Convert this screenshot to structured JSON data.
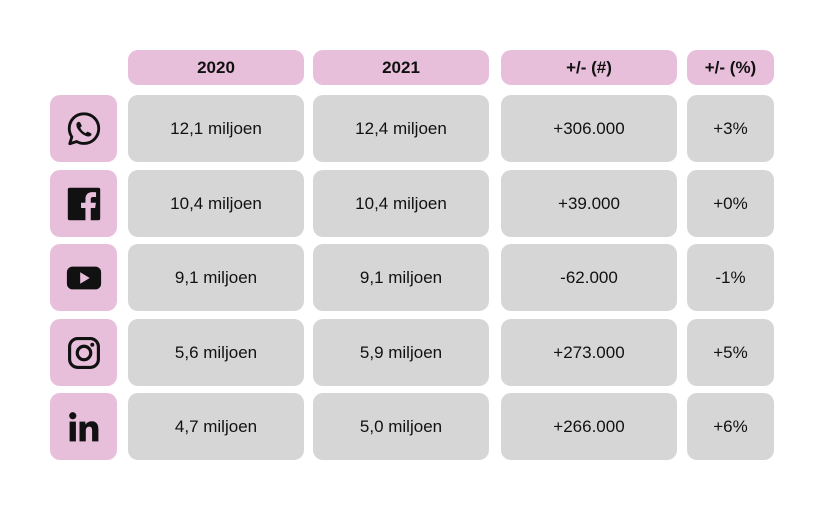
{
  "colors": {
    "accent_pink": "#e8bfda",
    "cell_gray": "#d6d6d6",
    "text": "#111111"
  },
  "chart_data": {
    "type": "table",
    "columns": [
      "2020",
      "2021",
      "+/- (#)",
      "+/- (%)"
    ],
    "rows": [
      {
        "icon": "whatsapp-icon",
        "values": [
          "12,1 miljoen",
          "12,4 miljoen",
          "+306.000",
          "+3%"
        ]
      },
      {
        "icon": "facebook-icon",
        "values": [
          "10,4 miljoen",
          "10,4 miljoen",
          "+39.000",
          "+0%"
        ]
      },
      {
        "icon": "youtube-icon",
        "values": [
          "9,1 miljoen",
          "9,1 miljoen",
          "-62.000",
          "-1%"
        ]
      },
      {
        "icon": "instagram-icon",
        "values": [
          "5,6 miljoen",
          "5,9 miljoen",
          "+273.000",
          "+5%"
        ]
      },
      {
        "icon": "linkedin-icon",
        "values": [
          "4,7 miljoen",
          "5,0 miljoen",
          "+266.000",
          "+6%"
        ]
      }
    ]
  }
}
